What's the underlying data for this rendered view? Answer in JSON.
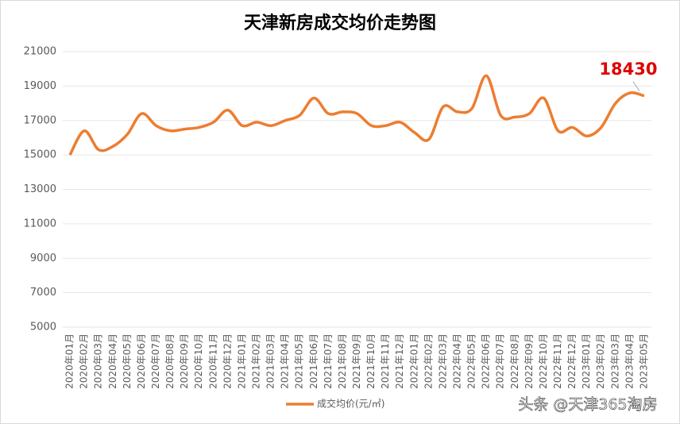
{
  "chart_data": {
    "type": "line",
    "title": "天津新房成交均价走势图",
    "categories": [
      "2020年01月",
      "2020年02月",
      "2020年03月",
      "2020年04月",
      "2020年05月",
      "2020年06月",
      "2020年07月",
      "2020年08月",
      "2020年09月",
      "2020年10月",
      "2020年11月",
      "2020年12月",
      "2021年01月",
      "2021年02月",
      "2021年03月",
      "2021年04月",
      "2021年05月",
      "2021年06月",
      "2021年07月",
      "2021年08月",
      "2021年09月",
      "2021年10月",
      "2021年11月",
      "2021年12月",
      "2022年01月",
      "2022年02月",
      "2022年03月",
      "2022年04月",
      "2022年05月",
      "2022年06月",
      "2022年07月",
      "2022年08月",
      "2022年09月",
      "2022年10月",
      "2022年11月",
      "2022年12月",
      "2023年01月",
      "2023年02月",
      "2023年03月",
      "2023年04月",
      "2023年05月"
    ],
    "series": [
      {
        "name": "成交均价(元/㎡)",
        "color": "#ed7d31",
        "values": [
          15000,
          16400,
          15300,
          15500,
          16200,
          17400,
          16700,
          16400,
          16500,
          16600,
          16900,
          17600,
          16700,
          16900,
          16700,
          17000,
          17300,
          18300,
          17400,
          17500,
          17400,
          16700,
          16700,
          16900,
          16300,
          15900,
          17800,
          17500,
          17700,
          19600,
          17300,
          17200,
          17400,
          18300,
          16400,
          16600,
          16100,
          16600,
          18000,
          18600,
          18430
        ]
      }
    ],
    "ylim": [
      5000,
      21000
    ],
    "yticks": [
      5000,
      7000,
      9000,
      11000,
      13000,
      15000,
      17000,
      19000,
      21000
    ],
    "grid": true,
    "watermark": "头条 @天津365淘房"
  }
}
